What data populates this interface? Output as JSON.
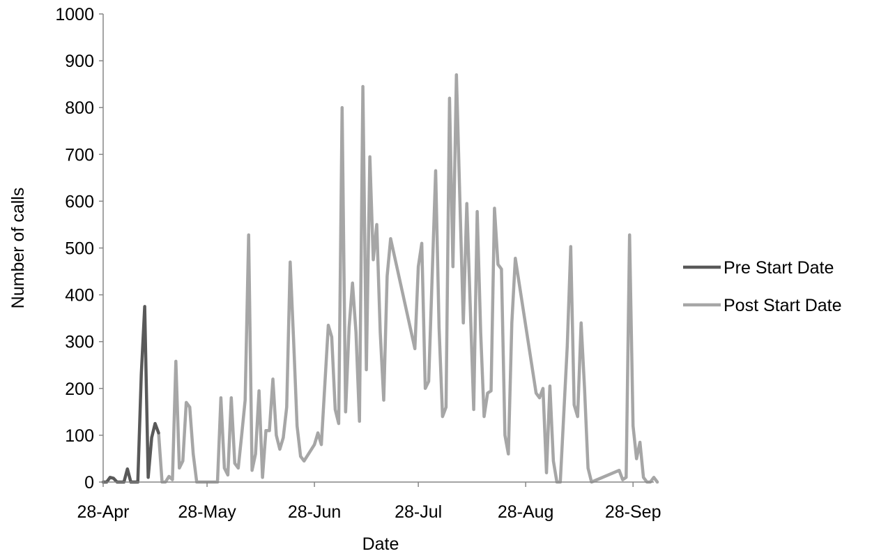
{
  "chart_data": {
    "type": "line",
    "xlabel": "Date",
    "ylabel": "Number of calls",
    "ylim": [
      0,
      1000
    ],
    "yticks": [
      0,
      100,
      200,
      300,
      400,
      500,
      600,
      700,
      800,
      900,
      1000
    ],
    "xlim": [
      "2010-04-28",
      "2010-10-04"
    ],
    "xticks": [
      {
        "date": "2010-04-28",
        "label": "28-Apr"
      },
      {
        "date": "2010-05-28",
        "label": "28-May"
      },
      {
        "date": "2010-06-28",
        "label": "28-Jun"
      },
      {
        "date": "2010-07-28",
        "label": "28-Jul"
      },
      {
        "date": "2010-08-28",
        "label": "28-Aug"
      },
      {
        "date": "2010-09-28",
        "label": "28-Sep"
      }
    ],
    "grid": false,
    "legend_position": "right",
    "series": [
      {
        "name": "Pre Start Date",
        "color": "#595959",
        "points": [
          [
            "2010-04-28",
            0
          ],
          [
            "2010-04-29",
            0
          ],
          [
            "2010-04-30",
            10
          ],
          [
            "2010-05-01",
            8
          ],
          [
            "2010-05-02",
            0
          ],
          [
            "2010-05-04",
            0
          ],
          [
            "2010-05-05",
            28
          ],
          [
            "2010-05-06",
            0
          ],
          [
            "2010-05-07",
            0
          ],
          [
            "2010-05-08",
            0
          ],
          [
            "2010-05-09",
            230
          ],
          [
            "2010-05-10",
            375
          ],
          [
            "2010-05-11",
            10
          ],
          [
            "2010-05-12",
            95
          ],
          [
            "2010-05-13",
            125
          ],
          [
            "2010-05-14",
            105
          ]
        ]
      },
      {
        "name": "Post Start Date",
        "color": "#a6a6a6",
        "points": [
          [
            "2010-05-14",
            105
          ],
          [
            "2010-05-15",
            0
          ],
          [
            "2010-05-16",
            0
          ],
          [
            "2010-05-17",
            12
          ],
          [
            "2010-05-18",
            5
          ],
          [
            "2010-05-19",
            258
          ],
          [
            "2010-05-20",
            30
          ],
          [
            "2010-05-21",
            45
          ],
          [
            "2010-05-22",
            170
          ],
          [
            "2010-05-23",
            160
          ],
          [
            "2010-05-24",
            60
          ],
          [
            "2010-05-25",
            0
          ],
          [
            "2010-05-27",
            0
          ],
          [
            "2010-05-29",
            0
          ],
          [
            "2010-05-31",
            0
          ],
          [
            "2010-06-01",
            180
          ],
          [
            "2010-06-02",
            30
          ],
          [
            "2010-06-03",
            15
          ],
          [
            "2010-06-04",
            180
          ],
          [
            "2010-06-05",
            40
          ],
          [
            "2010-06-06",
            30
          ],
          [
            "2010-06-07",
            100
          ],
          [
            "2010-06-08",
            175
          ],
          [
            "2010-06-09",
            528
          ],
          [
            "2010-06-10",
            25
          ],
          [
            "2010-06-11",
            60
          ],
          [
            "2010-06-12",
            195
          ],
          [
            "2010-06-13",
            10
          ],
          [
            "2010-06-14",
            110
          ],
          [
            "2010-06-15",
            110
          ],
          [
            "2010-06-16",
            220
          ],
          [
            "2010-06-17",
            100
          ],
          [
            "2010-06-18",
            70
          ],
          [
            "2010-06-19",
            95
          ],
          [
            "2010-06-20",
            160
          ],
          [
            "2010-06-21",
            470
          ],
          [
            "2010-06-22",
            300
          ],
          [
            "2010-06-23",
            120
          ],
          [
            "2010-06-24",
            55
          ],
          [
            "2010-06-25",
            45
          ],
          [
            "2010-06-28",
            80
          ],
          [
            "2010-06-29",
            105
          ],
          [
            "2010-06-30",
            80
          ],
          [
            "2010-07-02",
            335
          ],
          [
            "2010-07-03",
            310
          ],
          [
            "2010-07-04",
            155
          ],
          [
            "2010-07-05",
            125
          ],
          [
            "2010-07-06",
            800
          ],
          [
            "2010-07-07",
            150
          ],
          [
            "2010-07-08",
            330
          ],
          [
            "2010-07-09",
            425
          ],
          [
            "2010-07-10",
            320
          ],
          [
            "2010-07-11",
            130
          ],
          [
            "2010-07-12",
            845
          ],
          [
            "2010-07-13",
            240
          ],
          [
            "2010-07-14",
            695
          ],
          [
            "2010-07-15",
            475
          ],
          [
            "2010-07-16",
            550
          ],
          [
            "2010-07-17",
            320
          ],
          [
            "2010-07-18",
            175
          ],
          [
            "2010-07-19",
            440
          ],
          [
            "2010-07-20",
            520
          ],
          [
            "2010-07-27",
            285
          ],
          [
            "2010-07-28",
            460
          ],
          [
            "2010-07-29",
            510
          ],
          [
            "2010-07-30",
            200
          ],
          [
            "2010-07-31",
            215
          ],
          [
            "2010-08-02",
            665
          ],
          [
            "2010-08-03",
            330
          ],
          [
            "2010-08-04",
            140
          ],
          [
            "2010-08-05",
            160
          ],
          [
            "2010-08-06",
            820
          ],
          [
            "2010-08-07",
            460
          ],
          [
            "2010-08-08",
            870
          ],
          [
            "2010-08-09",
            600
          ],
          [
            "2010-08-10",
            340
          ],
          [
            "2010-08-11",
            595
          ],
          [
            "2010-08-13",
            155
          ],
          [
            "2010-08-14",
            578
          ],
          [
            "2010-08-15",
            320
          ],
          [
            "2010-08-16",
            140
          ],
          [
            "2010-08-17",
            190
          ],
          [
            "2010-08-18",
            195
          ],
          [
            "2010-08-19",
            585
          ],
          [
            "2010-08-20",
            465
          ],
          [
            "2010-08-21",
            455
          ],
          [
            "2010-08-22",
            100
          ],
          [
            "2010-08-23",
            60
          ],
          [
            "2010-08-24",
            340
          ],
          [
            "2010-08-25",
            478
          ],
          [
            "2010-08-31",
            190
          ],
          [
            "2010-09-01",
            180
          ],
          [
            "2010-09-02",
            200
          ],
          [
            "2010-09-03",
            20
          ],
          [
            "2010-09-04",
            205
          ],
          [
            "2010-09-05",
            45
          ],
          [
            "2010-09-06",
            0
          ],
          [
            "2010-09-07",
            0
          ],
          [
            "2010-09-09",
            290
          ],
          [
            "2010-09-10",
            503
          ],
          [
            "2010-09-11",
            165
          ],
          [
            "2010-09-12",
            140
          ],
          [
            "2010-09-13",
            340
          ],
          [
            "2010-09-14",
            200
          ],
          [
            "2010-09-15",
            30
          ],
          [
            "2010-09-16",
            0
          ],
          [
            "2010-09-24",
            25
          ],
          [
            "2010-09-25",
            5
          ],
          [
            "2010-09-26",
            10
          ],
          [
            "2010-09-27",
            528
          ],
          [
            "2010-09-28",
            120
          ],
          [
            "2010-09-29",
            50
          ],
          [
            "2010-09-30",
            85
          ],
          [
            "2010-10-01",
            10
          ],
          [
            "2010-10-02",
            0
          ],
          [
            "2010-10-03",
            0
          ],
          [
            "2010-10-04",
            10
          ],
          [
            "2010-10-05",
            0
          ]
        ]
      }
    ]
  }
}
